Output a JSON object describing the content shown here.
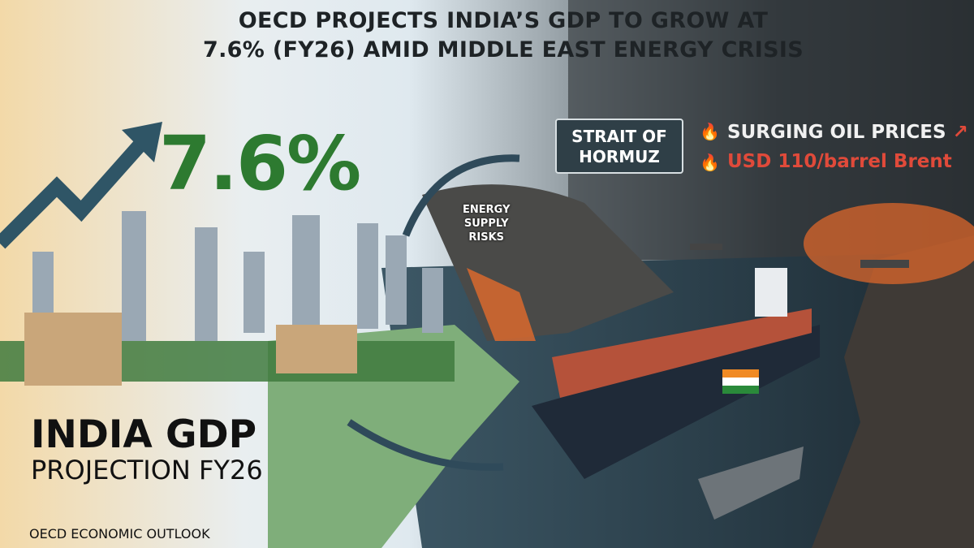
{
  "headline": {
    "line1": "OECD PROJECTS INDIA’S GDP TO GROW AT",
    "line2": "7.6% (FY26) AMID MIDDLE EAST ENERGY CRISIS"
  },
  "growth_figure": "7.6%",
  "sign": {
    "line1": "STRAIT OF",
    "line2": "HORMUZ"
  },
  "oil": {
    "line1": "SURGING OIL PRICES",
    "line2": "USD 110/barrel Brent"
  },
  "risk": {
    "line1": "ENERGY",
    "line2": "SUPPLY",
    "line3": "RISKS"
  },
  "bottom": {
    "title": "INDIA GDP",
    "subtitle": "PROJECTION FY26",
    "source": "OECD ECONOMIC OUTLOOK"
  },
  "colors": {
    "growth_green": "#2d7a30",
    "alert_red": "#e04a3a",
    "sign_bg": "#2f3f47"
  }
}
